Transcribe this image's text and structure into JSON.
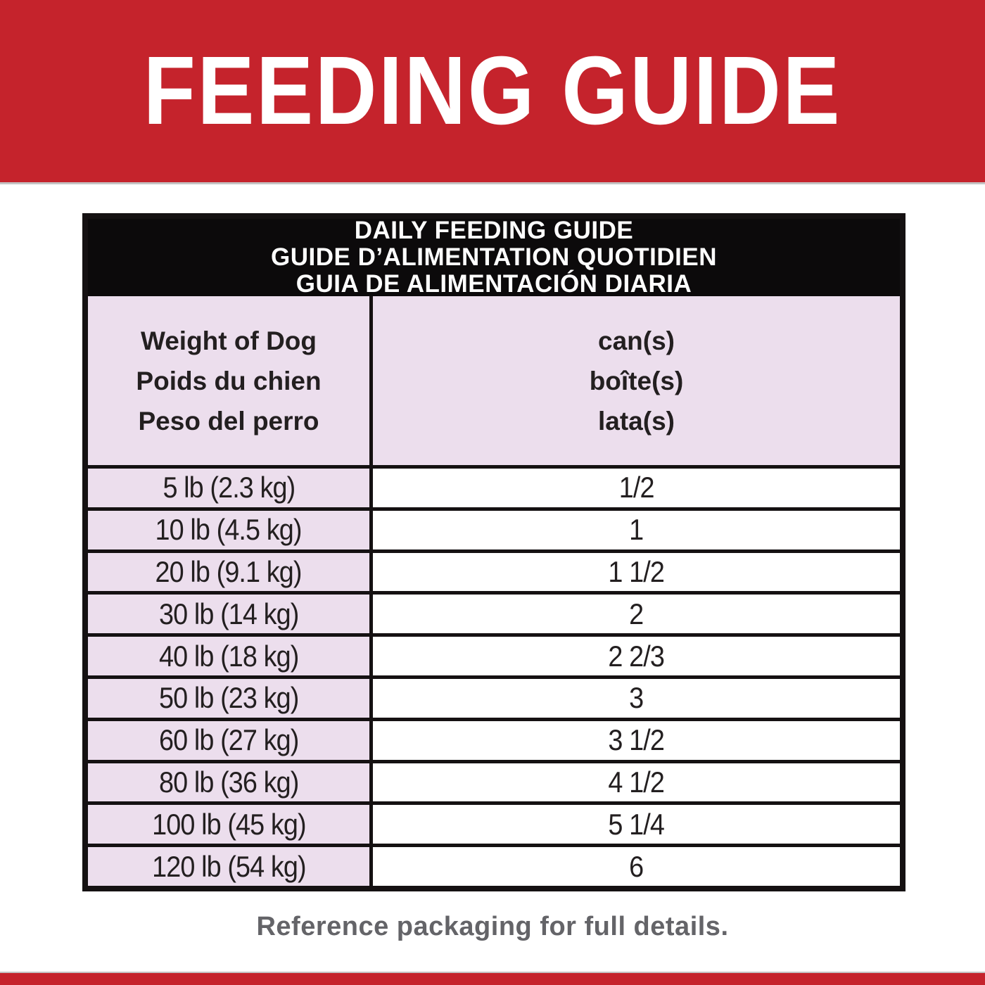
{
  "banner": {
    "title": "FEEDING GUIDE"
  },
  "table": {
    "title_lines": [
      "DAILY FEEDING GUIDE",
      "GUIDE D’ALIMENTATION QUOTIDIEN",
      "GUIA DE ALIMENTACIÓN DIARIA"
    ],
    "col_headers": {
      "weight": [
        "Weight of Dog",
        "Poids du chien",
        "Peso del perro"
      ],
      "cans": [
        "can(s)",
        "boîte(s)",
        "lata(s)"
      ]
    },
    "rows": [
      {
        "weight": "5 lb (2.3 kg)",
        "cans": "1/2"
      },
      {
        "weight": "10 lb (4.5 kg)",
        "cans": "1"
      },
      {
        "weight": "20 lb (9.1 kg)",
        "cans": "1 1/2"
      },
      {
        "weight": "30 lb (14 kg)",
        "cans": "2"
      },
      {
        "weight": "40 lb (18 kg)",
        "cans": "2 2/3"
      },
      {
        "weight": "50 lb (23 kg)",
        "cans": "3"
      },
      {
        "weight": "60 lb (27 kg)",
        "cans": "3 1/2"
      },
      {
        "weight": "80 lb (36 kg)",
        "cans": "4 1/2"
      },
      {
        "weight": "100 lb (45 kg)",
        "cans": "5 1/4"
      },
      {
        "weight": "120 lb (54 kg)",
        "cans": "6"
      }
    ]
  },
  "footer": {
    "note": "Reference packaging for full details."
  },
  "colors": {
    "brand_red": "#c5232c",
    "table_pink": "#ecdeed",
    "band_black": "#0c0a0b",
    "border_black": "#151112",
    "text_dark": "#231f20",
    "footer_gray": "#646468"
  },
  "chart_data": {
    "type": "table",
    "title": "DAILY FEEDING GUIDE / GUIDE D’ALIMENTATION QUOTIDIEN / GUIA DE ALIMENTACIÓN DIARIA",
    "columns": [
      "Weight of Dog / Poids du chien / Peso del perro",
      "can(s) / boîte(s) / lata(s)"
    ],
    "rows": [
      [
        "5 lb (2.3 kg)",
        "1/2"
      ],
      [
        "10 lb (4.5 kg)",
        "1"
      ],
      [
        "20 lb (9.1 kg)",
        "1 1/2"
      ],
      [
        "30 lb (14 kg)",
        "2"
      ],
      [
        "40 lb (18 kg)",
        "2 2/3"
      ],
      [
        "50 lb (23 kg)",
        "3"
      ],
      [
        "60 lb (27 kg)",
        "3 1/2"
      ],
      [
        "80 lb (36 kg)",
        "4 1/2"
      ],
      [
        "100 lb (45 kg)",
        "5 1/4"
      ],
      [
        "120 lb (54 kg)",
        "6"
      ]
    ]
  }
}
